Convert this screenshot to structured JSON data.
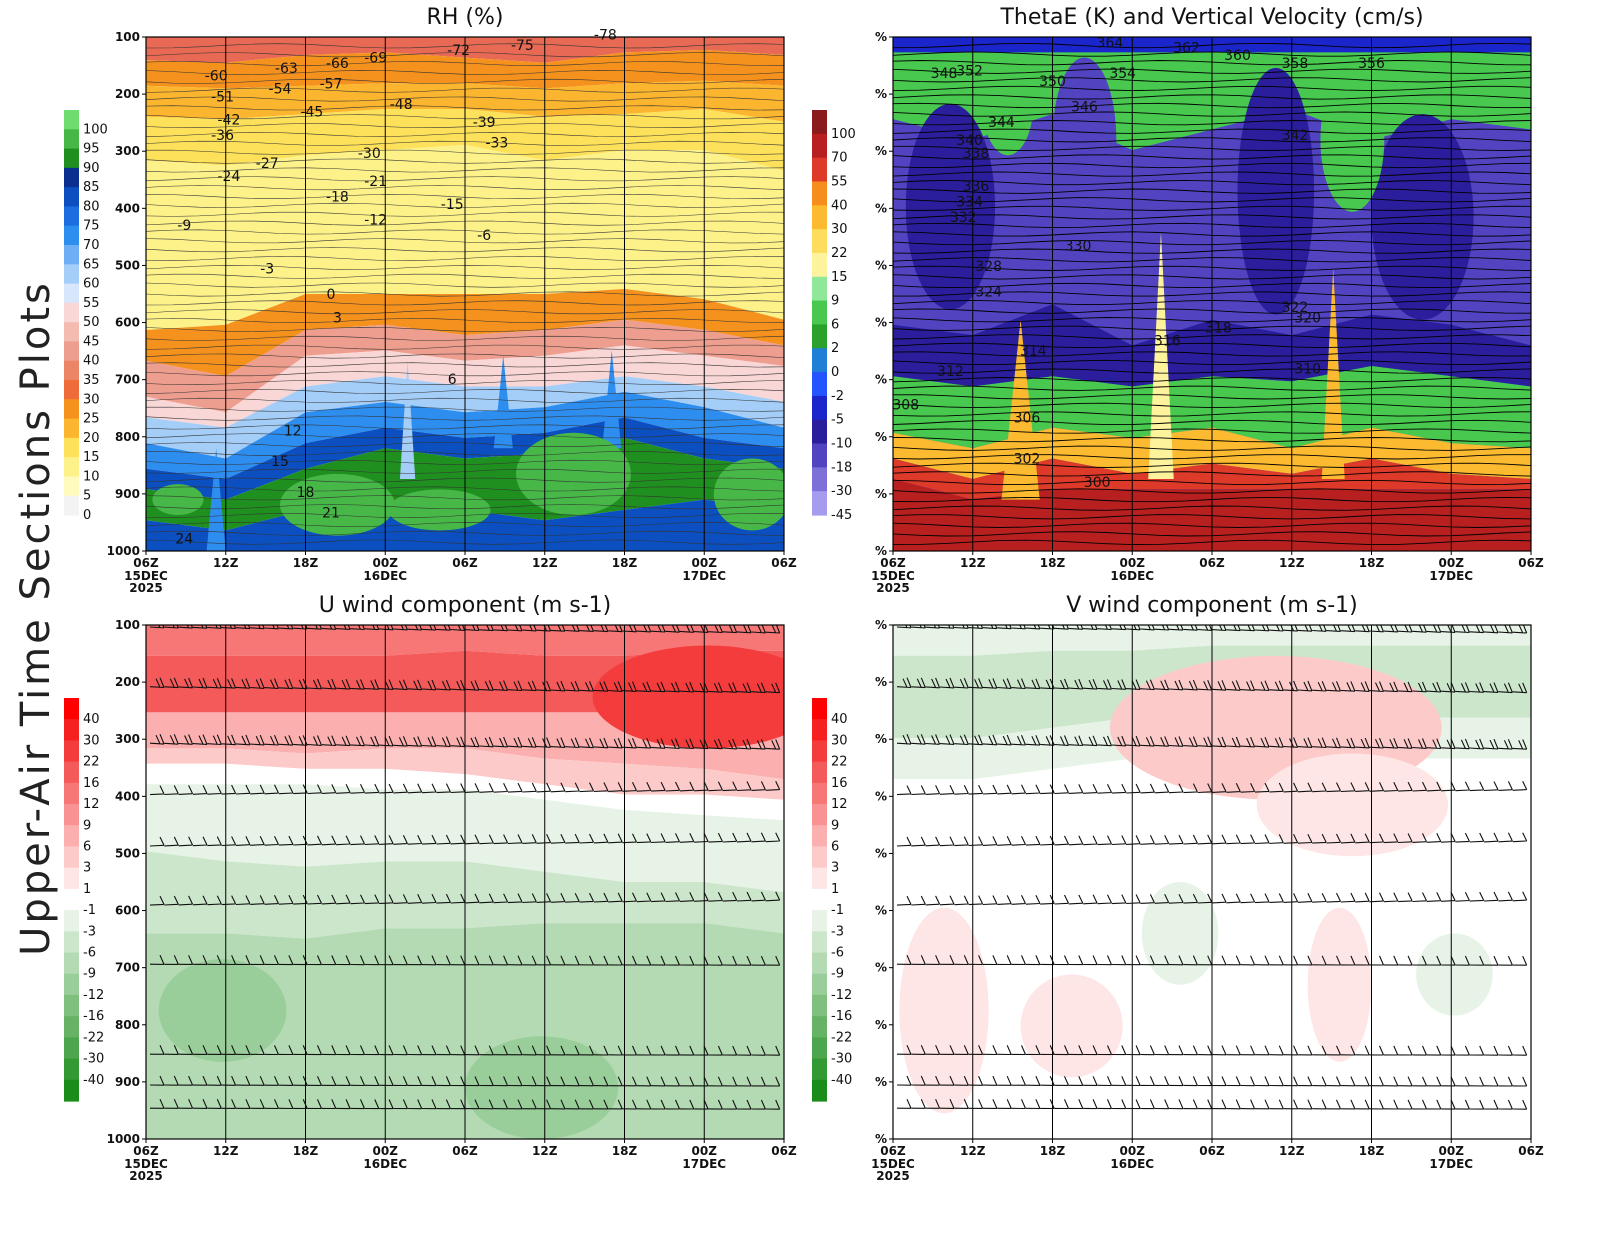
{
  "figure": {
    "side_title": "Upper-Air Time Sections Plots",
    "x_ticks": [
      "06Z",
      "12Z",
      "18Z",
      "00Z",
      "06Z",
      "12Z",
      "18Z",
      "00Z",
      "06Z"
    ],
    "x_dates": [
      {
        "index": 0,
        "lines": [
          "15DEC",
          "2025"
        ]
      },
      {
        "index": 3,
        "lines": [
          "16DEC"
        ]
      },
      {
        "index": 7,
        "lines": [
          "17DEC"
        ]
      }
    ]
  },
  "chart_data": [
    {
      "id": "rh",
      "type": "heatmap",
      "title": "RH (%)",
      "y_ticks": [
        "100",
        "200",
        "300",
        "400",
        "500",
        "600",
        "700",
        "800",
        "900",
        "1000"
      ],
      "ylim": [
        100,
        1000
      ],
      "colorbar": {
        "labels": [
          "100",
          "95",
          "90",
          "85",
          "80",
          "75",
          "70",
          "65",
          "60",
          "55",
          "50",
          "45",
          "40",
          "35",
          "30",
          "25",
          "20",
          "15",
          "10",
          "5",
          "0"
        ],
        "colors": [
          "#6fdc6f",
          "#47b847",
          "#1f8f1f",
          "#0a2f8f",
          "#0b4fc0",
          "#1c6ee0",
          "#2e8ef0",
          "#6eaef5",
          "#a4cdf8",
          "#d8e6fb",
          "#f9d7d7",
          "#f4bcb0",
          "#ee9e8e",
          "#ec8566",
          "#f06b3a",
          "#f5921e",
          "#fbb52e",
          "#fde15a",
          "#fdf28a",
          "#fffbbc",
          "#f3f3f3"
        ]
      },
      "contour_labels": [
        "-78",
        "-75",
        "-72",
        "-69",
        "-66",
        "-63",
        "-60",
        "-57",
        "-54",
        "-51",
        "-48",
        "-45",
        "-42",
        "-39",
        "-36",
        "-33",
        "-30",
        "-27",
        "-24",
        "-21",
        "-18",
        "-15",
        "-12",
        "-9",
        "-6",
        "-3",
        "0",
        "3",
        "6",
        "12",
        "15",
        "18",
        "21",
        "24"
      ]
    },
    {
      "id": "thetae",
      "type": "heatmap",
      "title": "ThetaE (K) and Vertical Velocity (cm/s)",
      "y_ticks": [
        "%",
        "%",
        "%",
        "%",
        "%",
        "%",
        "%",
        "%",
        "%",
        "%"
      ],
      "colorbar": {
        "labels": [
          "100",
          "70",
          "55",
          "40",
          "30",
          "22",
          "15",
          "9",
          "6",
          "2",
          "0",
          "-2",
          "-5",
          "-10",
          "-18",
          "-30",
          "-45"
        ],
        "colors": [
          "#8b1a1a",
          "#b82020",
          "#de3a2a",
          "#f58e1c",
          "#fbba30",
          "#fddc5e",
          "#fdf39c",
          "#8fe89a",
          "#48c84e",
          "#2aa12a",
          "#1f7fd6",
          "#2255ff",
          "#1a26cc",
          "#2a1e9c",
          "#5244c0",
          "#7d70d8",
          "#a59cf0"
        ]
      },
      "contour_labels": [
        "364",
        "362",
        "360",
        "358",
        "356",
        "354",
        "352",
        "350",
        "348",
        "346",
        "344",
        "342",
        "340",
        "338",
        "336",
        "334",
        "332",
        "330",
        "328",
        "324",
        "322",
        "320",
        "318",
        "316",
        "314",
        "312",
        "310",
        "308",
        "306",
        "302",
        "300"
      ]
    },
    {
      "id": "u",
      "type": "heatmap",
      "title": "U wind component (m s-1)",
      "y_ticks": [
        "100",
        "200",
        "300",
        "400",
        "500",
        "600",
        "700",
        "800",
        "900",
        "1000"
      ],
      "ylim": [
        100,
        1000
      ],
      "colorbar": {
        "labels": [
          "40",
          "30",
          "22",
          "16",
          "12",
          "9",
          "6",
          "3",
          "1",
          "-1",
          "-3",
          "-6",
          "-9",
          "-12",
          "-16",
          "-22",
          "-30",
          "-40"
        ],
        "colors": [
          "#ff0000",
          "#f72020",
          "#f43c3c",
          "#f55a5a",
          "#f77777",
          "#f99393",
          "#fbafaf",
          "#fdcaca",
          "#ffe6e6",
          "#ffffff",
          "#e6f3e6",
          "#cce6cc",
          "#b3dab3",
          "#99cd99",
          "#7fc07f",
          "#66b366",
          "#4da64d",
          "#339933",
          "#1a8c1a"
        ]
      }
    },
    {
      "id": "v",
      "type": "heatmap",
      "title": "V wind component (m s-1)",
      "y_ticks": [
        "%",
        "%",
        "%",
        "%",
        "%",
        "%",
        "%",
        "%",
        "%",
        "%"
      ],
      "colorbar": {
        "labels": [
          "40",
          "30",
          "22",
          "16",
          "12",
          "9",
          "6",
          "3",
          "1",
          "-1",
          "-3",
          "-6",
          "-9",
          "-12",
          "-16",
          "-22",
          "-30",
          "-40"
        ],
        "colors": [
          "#ff0000",
          "#f72020",
          "#f43c3c",
          "#f55a5a",
          "#f77777",
          "#f99393",
          "#fbafaf",
          "#fdcaca",
          "#ffe6e6",
          "#ffffff",
          "#e6f3e6",
          "#cce6cc",
          "#b3dab3",
          "#99cd99",
          "#7fc07f",
          "#66b366",
          "#4da64d",
          "#339933",
          "#1a8c1a"
        ]
      }
    }
  ]
}
